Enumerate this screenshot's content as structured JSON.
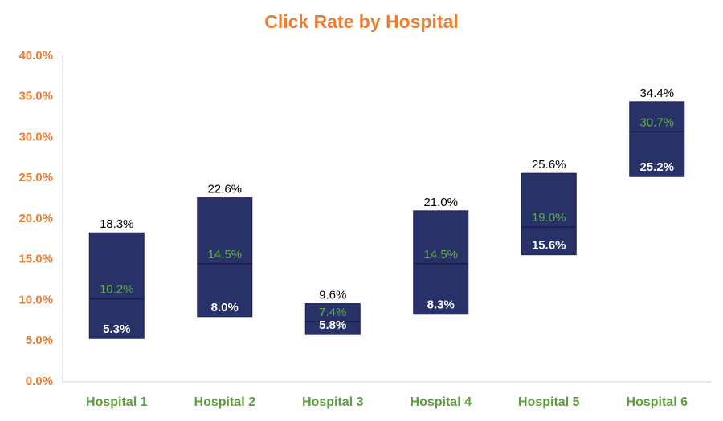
{
  "chart_data": {
    "type": "floating-box",
    "title": "Click Rate by Hospital",
    "categories": [
      "Hospital 1",
      "Hospital 2",
      "Hospital 3",
      "Hospital 4",
      "Hospital 5",
      "Hospital 6"
    ],
    "low": {
      "values": [
        5.3,
        8.0,
        5.8,
        8.3,
        15.6,
        25.2
      ],
      "value_labels": [
        "5.3%",
        "8.0%",
        "5.8%",
        "8.3%",
        "15.6%",
        "25.2%"
      ]
    },
    "median": {
      "values": [
        10.2,
        14.5,
        7.4,
        14.5,
        19.0,
        30.7
      ],
      "value_labels": [
        "10.2%",
        "14.5%",
        "7.4%",
        "14.5%",
        "19.0%",
        "30.7%"
      ]
    },
    "high": {
      "values": [
        18.3,
        22.6,
        9.6,
        21.0,
        25.6,
        34.4
      ],
      "value_labels": [
        "18.3%",
        "22.6%",
        "9.6%",
        "21.0%",
        "25.6%",
        "34.4%"
      ]
    },
    "ylim": [
      0,
      40
    ],
    "yticks": [
      {
        "value": 0,
        "label": "0.0%"
      },
      {
        "value": 5,
        "label": "5.0%"
      },
      {
        "value": 10,
        "label": "10.0%"
      },
      {
        "value": 15,
        "label": "15.0%"
      },
      {
        "value": 20,
        "label": "20.0%"
      },
      {
        "value": 25,
        "label": "25.0%"
      },
      {
        "value": 30,
        "label": "30.0%"
      },
      {
        "value": 35,
        "label": "35.0%"
      },
      {
        "value": 40,
        "label": "40.0%"
      }
    ],
    "grid": false,
    "box_color": "#283168",
    "median_line_color": "#151b45",
    "title_color": "#ED7D31",
    "ytick_color": "#ED7D31",
    "xtick_color": "#5b9e3c",
    "low_label_color": "#ffffff",
    "median_label_color": "#5fae45",
    "high_label_color": "#000000"
  }
}
